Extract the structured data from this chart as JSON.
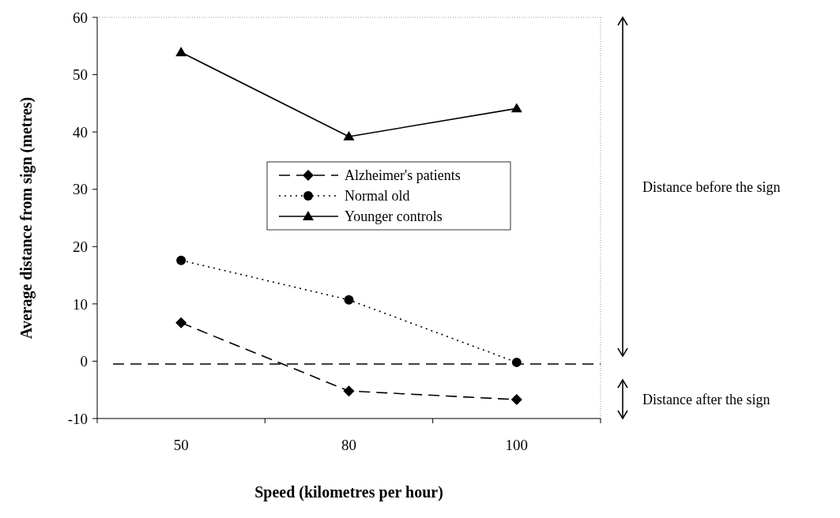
{
  "chart_data": {
    "type": "line",
    "xlabel": "Speed (kilometres per hour)",
    "ylabel": "Average distance from sign (metres)",
    "categories": [
      "50",
      "80",
      "100"
    ],
    "series": [
      {
        "name": "Alzheimer's patients",
        "color": "#000000",
        "values": [
          6.7,
          -5.2,
          -6.7
        ],
        "marker": "diamond",
        "line_style": "dashed"
      },
      {
        "name": "Normal old",
        "color": "#000000",
        "values": [
          17.6,
          10.7,
          -0.2
        ],
        "marker": "circle",
        "line_style": "dotted"
      },
      {
        "name": "Younger controls",
        "color": "#000000",
        "values": [
          53.9,
          39.2,
          44.1
        ],
        "marker": "triangle",
        "line_style": "solid"
      }
    ],
    "ylim": [
      -10,
      60
    ],
    "yticks": [
      -10,
      0,
      10,
      20,
      30,
      40,
      50,
      60
    ],
    "ref_lines": [
      {
        "axis": "y",
        "value": -0.5,
        "line_style": "dashed",
        "color": "#000000"
      }
    ],
    "annotations": [
      "Distance before the sign",
      "Distance after the sign"
    ],
    "legend": "center",
    "grid": false
  }
}
